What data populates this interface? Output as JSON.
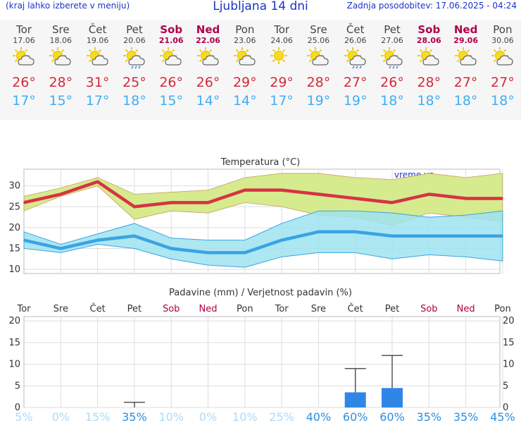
{
  "header": {
    "menu_hint": "(kraj lahko izberete v meniju)",
    "title": "Ljubljana 14 dni",
    "updated": "Zadnja posodobitev: 17.06.2025 - 04:24"
  },
  "days": [
    {
      "name": "Tor",
      "date": "17.06",
      "weekend": false,
      "icon": "sun-cloud-icon",
      "tmax": "26°",
      "tmin": "17°"
    },
    {
      "name": "Sre",
      "date": "18.06",
      "weekend": false,
      "icon": "sun-cloud-icon",
      "tmax": "28°",
      "tmin": "15°"
    },
    {
      "name": "Čet",
      "date": "19.06",
      "weekend": false,
      "icon": "sun-cloud-icon",
      "tmax": "31°",
      "tmin": "17°"
    },
    {
      "name": "Pet",
      "date": "20.06",
      "weekend": false,
      "icon": "sun-cloud-rain-icon",
      "tmax": "25°",
      "tmin": "18°"
    },
    {
      "name": "Sob",
      "date": "21.06",
      "weekend": true,
      "icon": "sun-cloud-icon",
      "tmax": "26°",
      "tmin": "15°"
    },
    {
      "name": "Ned",
      "date": "22.06",
      "weekend": true,
      "icon": "sun-cloud-icon",
      "tmax": "26°",
      "tmin": "14°"
    },
    {
      "name": "Pon",
      "date": "23.06",
      "weekend": false,
      "icon": "sun-cloud-icon",
      "tmax": "29°",
      "tmin": "14°"
    },
    {
      "name": "Tor",
      "date": "24.06",
      "weekend": false,
      "icon": "sun-icon",
      "tmax": "29°",
      "tmin": "17°"
    },
    {
      "name": "Sre",
      "date": "25.06",
      "weekend": false,
      "icon": "sun-cloud-icon",
      "tmax": "28°",
      "tmin": "19°"
    },
    {
      "name": "Čet",
      "date": "26.06",
      "weekend": false,
      "icon": "sun-cloud-rain-icon",
      "tmax": "27°",
      "tmin": "19°"
    },
    {
      "name": "Pet",
      "date": "27.06",
      "weekend": false,
      "icon": "sun-cloud-rain-icon",
      "tmax": "26°",
      "tmin": "18°"
    },
    {
      "name": "Sob",
      "date": "28.06",
      "weekend": true,
      "icon": "sun-cloud-icon",
      "tmax": "28°",
      "tmin": "18°"
    },
    {
      "name": "Ned",
      "date": "29.06",
      "weekend": true,
      "icon": "sun-cloud-icon",
      "tmax": "27°",
      "tmin": "18°"
    },
    {
      "name": "Pon",
      "date": "30.06",
      "weekend": false,
      "icon": "sun-cloud-icon",
      "tmax": "27°",
      "tmin": "18°"
    }
  ],
  "colors": {
    "max_line": "#d63343",
    "min_line": "#3aa3e3",
    "max_band": "#d6ea8e",
    "min_band": "#9fe3f0",
    "weekday": "#444444",
    "weekend": "#b0004a",
    "precip_bar": "#2f86e6",
    "prob_low": "#a9dcf5",
    "prob_high": "#2b8fe0"
  },
  "chart_data": [
    {
      "type": "line",
      "title": "Temperatura (°C)",
      "watermark": "vreme.us",
      "categories": [
        "17.06",
        "18.06",
        "19.06",
        "20.06",
        "21.06",
        "22.06",
        "23.06",
        "24.06",
        "25.06",
        "26.06",
        "27.06",
        "28.06",
        "29.06",
        "30.06"
      ],
      "ylim": [
        9,
        34
      ],
      "yticks": [
        10,
        15,
        20,
        25,
        30
      ],
      "grid": true,
      "series": [
        {
          "values": [
            26,
            28,
            31,
            25,
            26,
            26,
            29,
            29,
            28,
            27,
            26,
            28,
            27,
            27
          ]
        },
        {
          "values": [
            17,
            15,
            17,
            18,
            15,
            14,
            14,
            17,
            19,
            19,
            18,
            18,
            18,
            18
          ]
        }
      ],
      "bands": [
        {
          "upper": [
            27.5,
            29.5,
            32,
            28,
            28.5,
            29,
            32,
            33,
            33,
            32,
            31.5,
            33,
            32,
            33
          ],
          "lower": [
            24,
            27.5,
            30,
            22,
            24,
            23.5,
            26,
            25,
            23,
            22.5,
            20.5,
            23.5,
            22.5,
            21.5
          ]
        },
        {
          "upper": [
            19,
            16,
            18.5,
            21,
            17.5,
            17,
            17,
            21,
            24,
            24,
            23.5,
            22.5,
            23,
            24
          ],
          "lower": [
            15,
            14,
            16,
            15,
            12.5,
            11,
            10.5,
            13,
            14,
            14,
            12.5,
            13.5,
            13,
            12
          ]
        }
      ]
    },
    {
      "type": "bar",
      "title": "Padavine (mm) / Verjetnost padavin (%)",
      "categories": [
        "Tor",
        "Sre",
        "Čet",
        "Pet",
        "Sob",
        "Ned",
        "Pon",
        "Tor",
        "Sre",
        "Čet",
        "Pet",
        "Sob",
        "Ned",
        "Pon"
      ],
      "weekend_flags": [
        false,
        false,
        false,
        false,
        true,
        true,
        false,
        false,
        false,
        false,
        false,
        true,
        true,
        false
      ],
      "ylim": [
        0,
        21
      ],
      "yticks": [
        0,
        5,
        10,
        15,
        20
      ],
      "values": [
        0,
        0,
        0,
        0,
        0,
        0,
        0,
        0,
        0,
        3.5,
        4.5,
        0,
        0,
        0
      ],
      "error_high": [
        0,
        0,
        0,
        1.2,
        0,
        0,
        0,
        0,
        0,
        9,
        12,
        0,
        0,
        0
      ],
      "probability": [
        "5%",
        "0%",
        "15%",
        "35%",
        "10%",
        "0%",
        "10%",
        "25%",
        "40%",
        "60%",
        "60%",
        "35%",
        "35%",
        "45%"
      ],
      "probability_values": [
        5,
        0,
        15,
        35,
        10,
        0,
        10,
        25,
        40,
        60,
        60,
        35,
        35,
        45
      ]
    }
  ]
}
